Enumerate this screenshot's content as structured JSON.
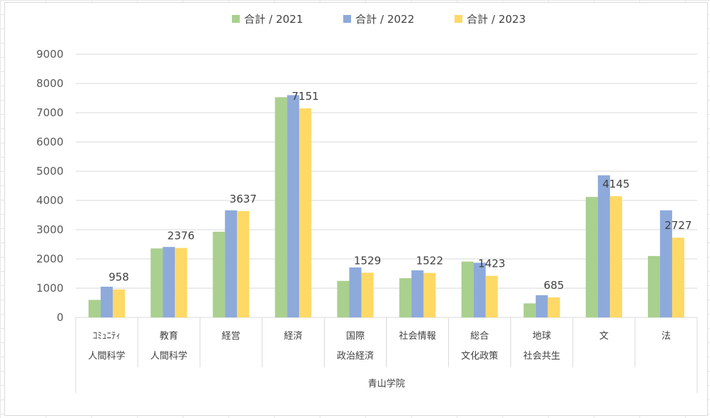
{
  "chart_data": {
    "type": "bar",
    "categories": [
      [
        "ｺﾐｭﾆﾃｨ",
        "人間科学"
      ],
      [
        "教育",
        "人間科学"
      ],
      [
        "経営"
      ],
      [
        "経済"
      ],
      [
        "国際",
        "政治経済"
      ],
      [
        "社会情報"
      ],
      [
        "総合",
        "文化政策"
      ],
      [
        "地球",
        "社会共生"
      ],
      [
        "文"
      ],
      [
        "法"
      ]
    ],
    "group_label": "青山学院",
    "series": [
      {
        "name": "合計 / 2021",
        "color": "#a9d08e",
        "values": [
          600,
          2360,
          2930,
          7530,
          1250,
          1340,
          1910,
          480,
          4120,
          2100
        ]
      },
      {
        "name": "合計 / 2022",
        "color": "#8eaadb",
        "values": [
          1050,
          2410,
          3660,
          7600,
          1710,
          1610,
          1870,
          760,
          4860,
          3660
        ]
      },
      {
        "name": "合計 / 2023",
        "color": "#ffd966",
        "values": [
          958,
          2376,
          3637,
          7151,
          1529,
          1522,
          1423,
          685,
          4145,
          2727
        ]
      }
    ],
    "data_labels": [
      "958",
      "2376",
      "3637",
      "7151",
      "1529",
      "1522",
      "1423",
      "685",
      "4145",
      "2727"
    ],
    "yticks": [
      "0",
      "1000",
      "2000",
      "3000",
      "4000",
      "5000",
      "6000",
      "7000",
      "8000",
      "9000"
    ],
    "ylim": [
      0,
      9000
    ],
    "grid": true,
    "legend_position": "top"
  }
}
